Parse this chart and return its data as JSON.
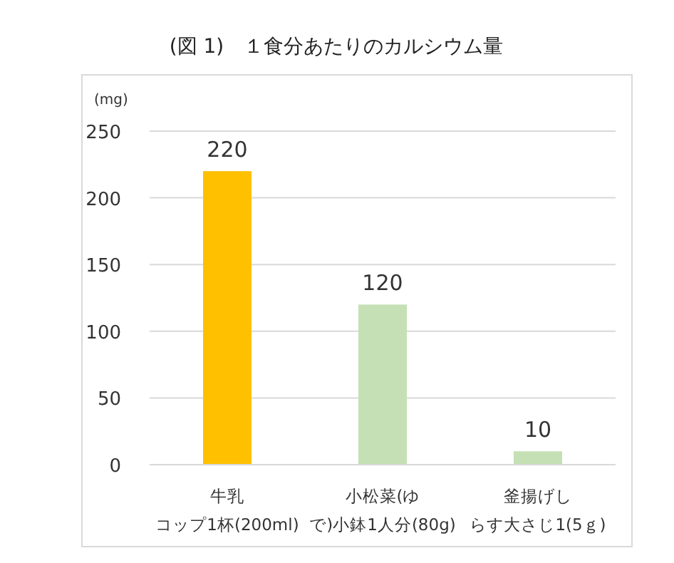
{
  "chart_data": {
    "type": "bar",
    "title": "(図 1)　１食分あたりのカルシウム量",
    "ylabel": "(mg)",
    "categories": [
      "牛乳コップ1杯(200ml)",
      "小松菜(ゆで)小鉢1人分(80g)",
      "釜揚げしらす大さじ1(5ｇ)"
    ],
    "values": [
      220,
      120,
      10
    ],
    "colors": [
      "#ffc000",
      "#c5e0b4",
      "#c5e0b4"
    ],
    "ylim": [
      0,
      250
    ],
    "yticks": [
      0,
      50,
      100,
      150,
      200,
      250
    ],
    "grid": "y",
    "data_labels": true
  }
}
